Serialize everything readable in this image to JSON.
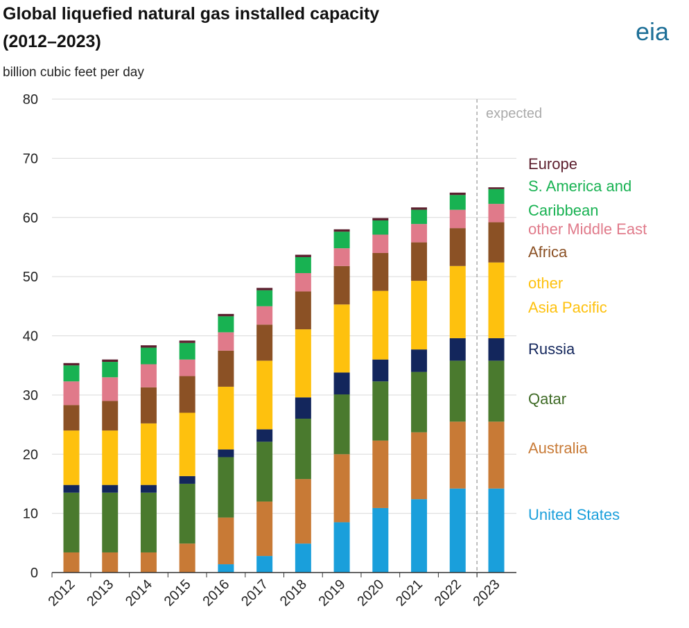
{
  "chart_data": {
    "type": "bar",
    "stacked": true,
    "title": "Global liquefied natural gas installed capacity\n(2012–2023)",
    "subtitle": "billion cubic feet per day",
    "logo": "eia",
    "annotation": "expected",
    "categories": [
      "2012",
      "2013",
      "2014",
      "2015",
      "2016",
      "2017",
      "2018",
      "2019",
      "2020",
      "2021",
      "2022",
      "2023"
    ],
    "ylim": [
      0,
      80
    ],
    "yticks": [
      0,
      10,
      20,
      30,
      40,
      50,
      60,
      70,
      80
    ],
    "grid": true,
    "series": [
      {
        "name": "United States",
        "color": "#1a9fdb",
        "values": [
          0,
          0,
          0,
          0,
          1.4,
          2.8,
          4.9,
          8.5,
          10.9,
          12.4,
          14.2,
          14.2
        ]
      },
      {
        "name": "Australia",
        "color": "#c87a36",
        "values": [
          3.4,
          3.4,
          3.4,
          4.9,
          7.9,
          9.2,
          10.9,
          11.5,
          11.4,
          11.3,
          11.3,
          11.3
        ]
      },
      {
        "name": "Qatar",
        "color": "#4a7a2e",
        "values": [
          10.1,
          10.1,
          10.1,
          10.1,
          10.2,
          10.1,
          10.2,
          10.1,
          10.0,
          10.2,
          10.3,
          10.3
        ]
      },
      {
        "name": "Russia",
        "color": "#13265c",
        "values": [
          1.3,
          1.3,
          1.3,
          1.3,
          1.3,
          2.1,
          3.6,
          3.7,
          3.7,
          3.8,
          3.8,
          3.8
        ]
      },
      {
        "name": "other\nAsia Pacific",
        "color": "#fec10e",
        "values": [
          9.2,
          9.2,
          10.4,
          10.7,
          10.6,
          11.6,
          11.5,
          11.5,
          11.6,
          11.6,
          12.2,
          12.8
        ]
      },
      {
        "name": "Africa",
        "color": "#8b5125",
        "values": [
          4.3,
          5.0,
          6.1,
          6.2,
          6.1,
          6.1,
          6.4,
          6.5,
          6.4,
          6.5,
          6.4,
          6.8
        ]
      },
      {
        "name": "other Middle East",
        "color": "#e07a8a",
        "values": [
          4.0,
          4.0,
          3.9,
          2.8,
          3.1,
          3.1,
          3.1,
          3.0,
          3.1,
          3.1,
          3.1,
          3.1
        ]
      },
      {
        "name": "S. America and\nCaribbean",
        "color": "#18b252",
        "values": [
          2.7,
          2.6,
          2.8,
          2.8,
          2.7,
          2.7,
          2.7,
          2.8,
          2.4,
          2.4,
          2.5,
          2.5
        ]
      },
      {
        "name": "Europe",
        "color": "#5c1f2e",
        "values": [
          0.4,
          0.4,
          0.4,
          0.4,
          0.4,
          0.4,
          0.4,
          0.4,
          0.4,
          0.4,
          0.4,
          0.3
        ]
      }
    ]
  }
}
